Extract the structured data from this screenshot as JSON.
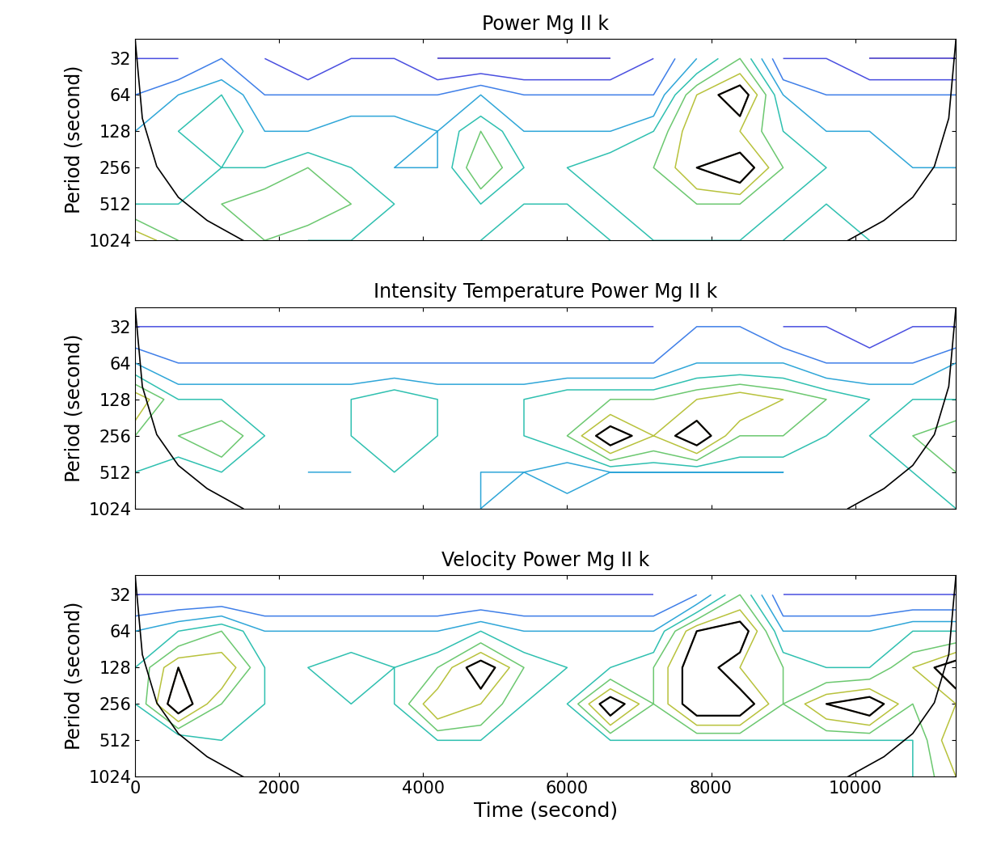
{
  "chart_data": [
    {
      "type": "contour",
      "title": "Power Mg II k",
      "ylabel": "Period (second)",
      "log": "y",
      "tick_labels": "y",
      "xlim": [
        0,
        11400
      ],
      "ylim": [
        1024,
        22
      ],
      "xticks": [
        0,
        2000,
        4000,
        6000,
        8000,
        10000
      ],
      "yticks": [
        32,
        64,
        128,
        256,
        512,
        1024
      ],
      "levels": [
        1,
        2,
        3,
        4,
        5,
        6,
        7,
        8,
        9
      ],
      "significance_level": 8,
      "x": [
        0,
        600,
        1200,
        1800,
        2400,
        3000,
        3600,
        4200,
        4800,
        5400,
        6000,
        6600,
        7200,
        7800,
        8400,
        9000,
        9600,
        10200,
        10800,
        11400
      ],
      "y": [
        32,
        64,
        128,
        256,
        512,
        1024
      ],
      "power": [
        [
          2,
          2,
          3,
          2,
          1,
          2,
          2,
          1,
          1,
          1,
          1,
          1,
          2,
          4,
          6,
          2,
          2,
          1,
          1,
          1
        ],
        [
          3,
          4,
          5,
          3,
          3,
          3,
          3,
          3,
          4,
          3,
          3,
          3,
          3,
          7,
          9,
          4,
          3,
          3,
          3,
          3
        ],
        [
          4,
          5,
          6,
          4,
          4,
          5,
          5,
          4,
          6,
          4,
          4,
          4,
          5,
          8,
          7,
          5,
          4,
          4,
          4,
          4
        ],
        [
          4,
          5,
          5,
          5,
          6,
          5,
          4,
          4,
          7,
          5,
          5,
          6,
          6,
          8,
          9,
          6,
          5,
          5,
          4,
          4
        ],
        [
          5,
          5,
          6,
          7,
          7,
          6,
          5,
          5,
          5,
          5,
          5,
          5,
          6,
          6,
          6,
          5,
          5,
          5,
          5,
          5
        ],
        [
          8,
          6,
          5,
          6,
          5,
          5,
          5,
          5,
          5,
          6,
          6,
          5,
          5,
          5,
          5,
          5,
          6,
          5,
          5,
          5
        ]
      ],
      "coi": [
        {
          "x": [
            0,
            100,
            300,
            600,
            1000,
            1500
          ],
          "period": [
            22,
            100,
            250,
            450,
            700,
            1024
          ]
        },
        {
          "x": [
            11400,
            11300,
            11100,
            10800,
            10400,
            9900
          ],
          "period": [
            22,
            100,
            250,
            450,
            700,
            1024
          ]
        }
      ]
    },
    {
      "type": "contour",
      "title": "Intensity Temperature Power Mg II k",
      "ylabel": "Period (second)",
      "log": "y",
      "tick_labels": "y",
      "xlim": [
        0,
        11400
      ],
      "ylim": [
        1024,
        22
      ],
      "xticks": [
        0,
        2000,
        4000,
        6000,
        8000,
        10000
      ],
      "yticks": [
        32,
        64,
        128,
        256,
        512,
        1024
      ],
      "levels": [
        1,
        2,
        3,
        4,
        5,
        6,
        7,
        8,
        9
      ],
      "significance_level": 8,
      "x": [
        0,
        600,
        1200,
        1800,
        2400,
        3000,
        3600,
        4200,
        4800,
        5400,
        6000,
        6600,
        7200,
        7800,
        8400,
        9000,
        9600,
        10200,
        10800,
        11400
      ],
      "y": [
        32,
        64,
        128,
        256,
        512,
        1024
      ],
      "power": [
        [
          2,
          2,
          2,
          2,
          2,
          2,
          2,
          2,
          2,
          2,
          2,
          2,
          2,
          3,
          3,
          2,
          2,
          1,
          2,
          2
        ],
        [
          4,
          3,
          3,
          3,
          3,
          3,
          3,
          3,
          3,
          3,
          3,
          3,
          3,
          4,
          4,
          4,
          3,
          3,
          3,
          4
        ],
        [
          8,
          5,
          5,
          5,
          5,
          5,
          6,
          5,
          5,
          5,
          6,
          6,
          6,
          7,
          8,
          7,
          6,
          5,
          5,
          5
        ],
        [
          6,
          6,
          7,
          5,
          5,
          5,
          6,
          5,
          5,
          5,
          6,
          9,
          7,
          9,
          6,
          6,
          5,
          5,
          6,
          7
        ],
        [
          5,
          4,
          5,
          5,
          4,
          4,
          5,
          5,
          4,
          4,
          3,
          4,
          4,
          4,
          4,
          4,
          5,
          4,
          5,
          6
        ],
        [
          5,
          5,
          5,
          5,
          5,
          5,
          5,
          5,
          4,
          5,
          5,
          5,
          5,
          5,
          5,
          5,
          5,
          5,
          5,
          5
        ]
      ],
      "coi": [
        {
          "x": [
            0,
            100,
            300,
            600,
            1000,
            1500
          ],
          "period": [
            22,
            100,
            250,
            450,
            700,
            1024
          ]
        },
        {
          "x": [
            11400,
            11300,
            11100,
            10800,
            10400,
            9900
          ],
          "period": [
            22,
            100,
            250,
            450,
            700,
            1024
          ]
        }
      ]
    },
    {
      "type": "contour",
      "title": "Velocity Power Mg II k",
      "ylabel": "Period (second)",
      "xlabel": "Time (second)",
      "log": "y",
      "xlim": [
        0,
        11400
      ],
      "ylim": [
        1024,
        22
      ],
      "xticks": [
        0,
        2000,
        4000,
        6000,
        8000,
        10000
      ],
      "yticks": [
        32,
        64,
        128,
        256,
        512,
        1024
      ],
      "levels": [
        1,
        2,
        3,
        4,
        5,
        6,
        7,
        8,
        9
      ],
      "significance_level": 8,
      "x": [
        0,
        600,
        1200,
        1800,
        2400,
        3000,
        3600,
        4200,
        4800,
        5400,
        6000,
        6600,
        7200,
        7800,
        8400,
        9000,
        9600,
        10200,
        10800,
        11400
      ],
      "y": [
        32,
        64,
        128,
        256,
        512,
        1024
      ],
      "power": [
        [
          2,
          2,
          2,
          2,
          2,
          2,
          2,
          2,
          2,
          2,
          2,
          2,
          2,
          3,
          6,
          2,
          2,
          2,
          2,
          2
        ],
        [
          4,
          5,
          6,
          4,
          4,
          4,
          4,
          4,
          5,
          4,
          4,
          4,
          4,
          8,
          9,
          4,
          4,
          4,
          5,
          5
        ],
        [
          5,
          8,
          8,
          5,
          5,
          6,
          5,
          6,
          9,
          6,
          5,
          5,
          6,
          9,
          7,
          6,
          5,
          5,
          7,
          9
        ],
        [
          5,
          9,
          6,
          5,
          5,
          5,
          5,
          8,
          7,
          5,
          5,
          9,
          6,
          9,
          9,
          6,
          8,
          9,
          6,
          7
        ],
        [
          5,
          4,
          5,
          5,
          4,
          5,
          5,
          5,
          5,
          5,
          5,
          5,
          5,
          5,
          5,
          5,
          5,
          5,
          5,
          8
        ],
        [
          5,
          5,
          5,
          5,
          5,
          5,
          5,
          5,
          5,
          5,
          5,
          5,
          5,
          5,
          5,
          5,
          5,
          5,
          5,
          7
        ]
      ],
      "coi": [
        {
          "x": [
            0,
            100,
            300,
            600,
            1000,
            1500
          ],
          "period": [
            22,
            100,
            250,
            450,
            700,
            1024
          ]
        },
        {
          "x": [
            11400,
            11300,
            11100,
            10800,
            10400,
            9900
          ],
          "period": [
            22,
            100,
            250,
            450,
            700,
            1024
          ]
        }
      ]
    }
  ]
}
